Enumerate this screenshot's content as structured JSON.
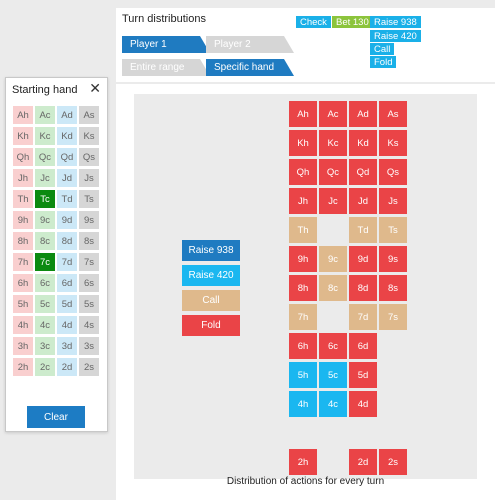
{
  "starting_hand": {
    "title": "Starting hand",
    "close_symbol": "✕",
    "cards": [
      [
        "Ah",
        "Ac",
        "Ad",
        "As"
      ],
      [
        "Kh",
        "Kc",
        "Kd",
        "Ks"
      ],
      [
        "Qh",
        "Qc",
        "Qd",
        "Qs"
      ],
      [
        "Jh",
        "Jc",
        "Jd",
        "Js"
      ],
      [
        "Th",
        "Tc",
        "Td",
        "Ts"
      ],
      [
        "9h",
        "9c",
        "9d",
        "9s"
      ],
      [
        "8h",
        "8c",
        "8d",
        "8s"
      ],
      [
        "7h",
        "7c",
        "7d",
        "7s"
      ],
      [
        "6h",
        "6c",
        "6d",
        "6s"
      ],
      [
        "5h",
        "5c",
        "5d",
        "5s"
      ],
      [
        "4h",
        "4c",
        "4d",
        "4s"
      ],
      [
        "3h",
        "3c",
        "3d",
        "3s"
      ],
      [
        "2h",
        "2c",
        "2d",
        "2s"
      ]
    ],
    "selected": [
      "Tc",
      "7c"
    ],
    "clear_label": "Clear"
  },
  "header": {
    "title": "Turn distributions",
    "player_tabs": [
      "Player 1",
      "Player 2"
    ],
    "active_player": 0,
    "range_tabs": [
      "Entire range",
      "Specific hand"
    ],
    "active_range": 1,
    "action_legend": [
      {
        "label": "Check",
        "color": "#1ab0e8"
      },
      {
        "label": "Bet 130",
        "color": "#8cc43c"
      },
      {
        "label": "Raise 938",
        "color": "#1ab0e8"
      },
      {
        "label": "Raise 420",
        "color": "#1ab0e8"
      },
      {
        "label": "Call",
        "color": "#1ab0e8"
      },
      {
        "label": "Fold",
        "color": "#1ab0e8"
      }
    ]
  },
  "colors": {
    "raise938": "#1f7bc1",
    "raise420": "#1ab7f0",
    "call": "#dfb98c",
    "fold": "#ea4447"
  },
  "main": {
    "legend": [
      {
        "label": "Raise 938",
        "key": "raise938"
      },
      {
        "label": "Raise 420",
        "key": "raise420"
      },
      {
        "label": "Call",
        "key": "call"
      },
      {
        "label": "Fold",
        "key": "fold"
      }
    ],
    "caption": "Distribution of actions for every turn",
    "grid": [
      {
        "card": "Ah",
        "action": "fold"
      },
      {
        "card": "Ac",
        "action": "fold"
      },
      {
        "card": "Ad",
        "action": "fold"
      },
      {
        "card": "As",
        "action": "fold"
      },
      {
        "card": "Kh",
        "action": "fold"
      },
      {
        "card": "Kc",
        "action": "fold"
      },
      {
        "card": "Kd",
        "action": "fold"
      },
      {
        "card": "Ks",
        "action": "fold"
      },
      {
        "card": "Qh",
        "action": "fold"
      },
      {
        "card": "Qc",
        "action": "fold"
      },
      {
        "card": "Qd",
        "action": "fold"
      },
      {
        "card": "Qs",
        "action": "fold"
      },
      {
        "card": "Jh",
        "action": "fold"
      },
      {
        "card": "Jc",
        "action": "fold"
      },
      {
        "card": "Jd",
        "action": "fold"
      },
      {
        "card": "Js",
        "action": "fold"
      },
      {
        "card": "Th",
        "action": "call"
      },
      null,
      {
        "card": "Td",
        "action": "call"
      },
      {
        "card": "Ts",
        "action": "call"
      },
      {
        "card": "9h",
        "action": "fold"
      },
      {
        "card": "9c",
        "action": "call"
      },
      {
        "card": "9d",
        "action": "fold"
      },
      {
        "card": "9s",
        "action": "fold"
      },
      {
        "card": "8h",
        "action": "fold"
      },
      {
        "card": "8c",
        "action": "call"
      },
      {
        "card": "8d",
        "action": "fold"
      },
      {
        "card": "8s",
        "action": "fold"
      },
      {
        "card": "7h",
        "action": "call"
      },
      null,
      {
        "card": "7d",
        "action": "call"
      },
      {
        "card": "7s",
        "action": "call"
      },
      {
        "card": "6h",
        "action": "fold"
      },
      {
        "card": "6c",
        "action": "fold"
      },
      {
        "card": "6d",
        "action": "fold"
      },
      null,
      {
        "card": "5h",
        "action": "raise420"
      },
      {
        "card": "5c",
        "action": "raise420"
      },
      {
        "card": "5d",
        "action": "fold"
      },
      null,
      {
        "card": "4h",
        "action": "raise420"
      },
      {
        "card": "4c",
        "action": "raise420"
      },
      {
        "card": "4d",
        "action": "fold"
      },
      null,
      null,
      null,
      null,
      null,
      {
        "card": "2h",
        "action": "fold"
      },
      null,
      {
        "card": "2d",
        "action": "fold"
      },
      {
        "card": "2s",
        "action": "fold"
      }
    ]
  }
}
